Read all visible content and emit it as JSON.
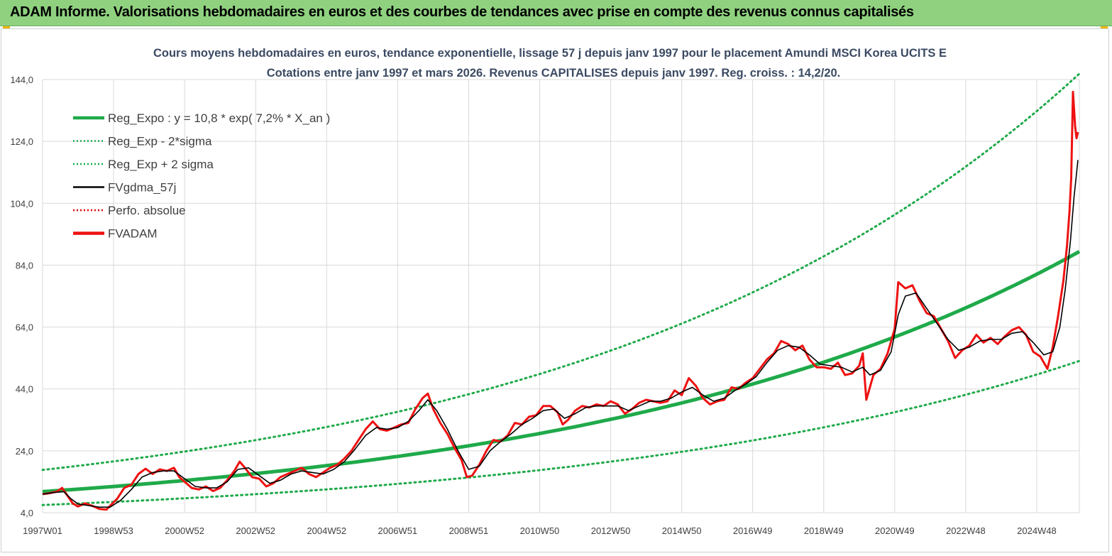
{
  "header": {
    "title": "ADAM Informe. Valorisations hebdomadaires en euros et des courbes de tendances avec prise en compte des revenus connus capitalisés"
  },
  "chart_data": {
    "type": "line",
    "title_line1": "Cours moyens hebdomadaires en euros, tendance exponentielle, lissage 57 j depuis janv 1997  pour le placement Amundi MSCI Korea UCITS E",
    "title_line2": "Cotations entre janv 1997 et mars 2026. Revenus CAPITALISES depuis janv 1997. Reg. croiss. : 14,2/20.",
    "ylim": [
      4.0,
      144.0
    ],
    "xlim": [
      1997.0,
      2026.2
    ],
    "y_ticks": [
      "4,0",
      "24,0",
      "44,0",
      "64,0",
      "84,0",
      "104,0",
      "124,0",
      "144,0"
    ],
    "y_tick_values": [
      4,
      24,
      44,
      64,
      84,
      104,
      124,
      144
    ],
    "x_tick_labels": [
      "1997W01",
      "1998W53",
      "2000W52",
      "2002W52",
      "2004W52",
      "2006W51",
      "2008W51",
      "2010W50",
      "2012W50",
      "2014W50",
      "2016W49",
      "2018W49",
      "2020W49",
      "2022W48",
      "2024W48"
    ],
    "x_tick_values": [
      1997.0,
      1999.0,
      2001.0,
      2003.0,
      2005.0,
      2007.0,
      2009.0,
      2011.0,
      2013.0,
      2015.0,
      2017.0,
      2019.0,
      2021.0,
      2023.0,
      2025.0
    ],
    "legend": [
      {
        "name": "Reg_Expo : y = 10,8 * exp( 7,2% *  X_an )",
        "style": "thick",
        "color": "#1faa4a"
      },
      {
        "name": "Reg_Exp - 2*sigma",
        "style": "dotted",
        "color": "#1faa4a"
      },
      {
        "name": "Reg_Exp + 2 sigma",
        "style": "dotted",
        "color": "#1faa4a"
      },
      {
        "name": "FVgdma_57j",
        "style": "solid",
        "color": "#000000"
      },
      {
        "name": "Perfo. absolue",
        "style": "dotted",
        "color": "#e00000"
      },
      {
        "name": "FVADAM",
        "style": "thick",
        "color": "#ee1111"
      }
    ],
    "regression": {
      "a": 10.8,
      "rate": 0.072,
      "start": 1997.0,
      "lower_factor": 0.6,
      "upper_factor": 1.65
    },
    "series": [
      {
        "name": "FVADAM",
        "color": "#ee1111",
        "points": [
          [
            1997.0,
            10.0
          ],
          [
            1997.2,
            10.3
          ],
          [
            1997.4,
            10.8
          ],
          [
            1997.55,
            12.0
          ],
          [
            1997.7,
            9.5
          ],
          [
            1997.85,
            7.0
          ],
          [
            1998.0,
            6.0
          ],
          [
            1998.2,
            7.0
          ],
          [
            1998.4,
            6.2
          ],
          [
            1998.6,
            5.2
          ],
          [
            1998.8,
            5.0
          ],
          [
            1998.95,
            6.8
          ],
          [
            1999.1,
            8.5
          ],
          [
            1999.3,
            12.0
          ],
          [
            1999.5,
            13.0
          ],
          [
            1999.7,
            16.5
          ],
          [
            1999.9,
            18.2
          ],
          [
            2000.1,
            16.5
          ],
          [
            2000.3,
            18.0
          ],
          [
            2000.5,
            17.5
          ],
          [
            2000.7,
            18.5
          ],
          [
            2000.85,
            15.5
          ],
          [
            2001.0,
            14.0
          ],
          [
            2001.2,
            12.0
          ],
          [
            2001.4,
            11.5
          ],
          [
            2001.6,
            12.5
          ],
          [
            2001.8,
            11.0
          ],
          [
            2002.0,
            12.0
          ],
          [
            2002.2,
            14.5
          ],
          [
            2002.4,
            17.5
          ],
          [
            2002.55,
            20.5
          ],
          [
            2002.7,
            18.5
          ],
          [
            2002.9,
            15.5
          ],
          [
            2003.1,
            15.0
          ],
          [
            2003.3,
            12.5
          ],
          [
            2003.5,
            13.5
          ],
          [
            2003.7,
            15.5
          ],
          [
            2003.9,
            16.5
          ],
          [
            2004.1,
            17.5
          ],
          [
            2004.3,
            18.5
          ],
          [
            2004.5,
            16.5
          ],
          [
            2004.7,
            15.5
          ],
          [
            2004.9,
            17.0
          ],
          [
            2005.1,
            18.5
          ],
          [
            2005.3,
            19.5
          ],
          [
            2005.5,
            21.5
          ],
          [
            2005.7,
            24.0
          ],
          [
            2005.9,
            27.5
          ],
          [
            2006.1,
            31.0
          ],
          [
            2006.3,
            33.5
          ],
          [
            2006.5,
            31.0
          ],
          [
            2006.7,
            30.5
          ],
          [
            2006.9,
            31.5
          ],
          [
            2007.1,
            32.5
          ],
          [
            2007.3,
            33.0
          ],
          [
            2007.5,
            37.5
          ],
          [
            2007.7,
            41.0
          ],
          [
            2007.85,
            42.5
          ],
          [
            2008.0,
            37.5
          ],
          [
            2008.2,
            33.0
          ],
          [
            2008.4,
            29.5
          ],
          [
            2008.6,
            25.0
          ],
          [
            2008.8,
            21.0
          ],
          [
            2008.95,
            15.5
          ],
          [
            2009.1,
            16.0
          ],
          [
            2009.3,
            19.5
          ],
          [
            2009.5,
            24.0
          ],
          [
            2009.7,
            27.5
          ],
          [
            2009.9,
            27.0
          ],
          [
            2010.1,
            29.0
          ],
          [
            2010.3,
            33.0
          ],
          [
            2010.5,
            32.5
          ],
          [
            2010.7,
            35.0
          ],
          [
            2010.9,
            35.5
          ],
          [
            2011.1,
            38.5
          ],
          [
            2011.3,
            38.5
          ],
          [
            2011.5,
            36.5
          ],
          [
            2011.65,
            32.5
          ],
          [
            2011.8,
            34.0
          ],
          [
            2012.0,
            37.0
          ],
          [
            2012.2,
            38.5
          ],
          [
            2012.4,
            38.0
          ],
          [
            2012.6,
            39.0
          ],
          [
            2012.8,
            38.5
          ],
          [
            2013.0,
            40.0
          ],
          [
            2013.2,
            39.0
          ],
          [
            2013.4,
            36.0
          ],
          [
            2013.6,
            37.5
          ],
          [
            2013.8,
            39.5
          ],
          [
            2014.0,
            40.5
          ],
          [
            2014.2,
            40.0
          ],
          [
            2014.4,
            39.5
          ],
          [
            2014.6,
            40.0
          ],
          [
            2014.8,
            43.5
          ],
          [
            2015.0,
            42.0
          ],
          [
            2015.2,
            47.5
          ],
          [
            2015.4,
            45.0
          ],
          [
            2015.6,
            41.0
          ],
          [
            2015.8,
            39.0
          ],
          [
            2016.0,
            40.0
          ],
          [
            2016.2,
            40.5
          ],
          [
            2016.4,
            44.5
          ],
          [
            2016.6,
            44.0
          ],
          [
            2016.8,
            46.0
          ],
          [
            2017.0,
            47.5
          ],
          [
            2017.2,
            50.5
          ],
          [
            2017.4,
            53.5
          ],
          [
            2017.6,
            55.5
          ],
          [
            2017.8,
            59.5
          ],
          [
            2018.0,
            58.5
          ],
          [
            2018.2,
            56.5
          ],
          [
            2018.4,
            58.0
          ],
          [
            2018.6,
            53.5
          ],
          [
            2018.8,
            51.0
          ],
          [
            2019.0,
            51.0
          ],
          [
            2019.2,
            50.5
          ],
          [
            2019.4,
            52.5
          ],
          [
            2019.6,
            48.5
          ],
          [
            2019.8,
            49.0
          ],
          [
            2020.0,
            51.5
          ],
          [
            2020.1,
            55.5
          ],
          [
            2020.2,
            40.5
          ],
          [
            2020.4,
            48.5
          ],
          [
            2020.6,
            50.5
          ],
          [
            2020.8,
            55.5
          ],
          [
            2021.0,
            63.5
          ],
          [
            2021.1,
            78.5
          ],
          [
            2021.3,
            76.5
          ],
          [
            2021.5,
            77.5
          ],
          [
            2021.7,
            72.5
          ],
          [
            2021.9,
            68.5
          ],
          [
            2022.1,
            67.5
          ],
          [
            2022.3,
            63.5
          ],
          [
            2022.5,
            59.5
          ],
          [
            2022.7,
            54.0
          ],
          [
            2022.9,
            56.5
          ],
          [
            2023.1,
            58.0
          ],
          [
            2023.3,
            61.5
          ],
          [
            2023.5,
            59.0
          ],
          [
            2023.7,
            60.5
          ],
          [
            2023.9,
            58.5
          ],
          [
            2024.1,
            61.0
          ],
          [
            2024.3,
            63.0
          ],
          [
            2024.5,
            64.0
          ],
          [
            2024.7,
            61.5
          ],
          [
            2024.9,
            56.0
          ],
          [
            2025.1,
            54.5
          ],
          [
            2025.3,
            50.5
          ],
          [
            2025.45,
            57.5
          ],
          [
            2025.6,
            67.5
          ],
          [
            2025.75,
            79.0
          ],
          [
            2025.85,
            90.0
          ],
          [
            2025.92,
            101.0
          ],
          [
            2025.97,
            112.0
          ],
          [
            2026.02,
            140.0
          ],
          [
            2026.08,
            129.0
          ],
          [
            2026.12,
            125.0
          ],
          [
            2026.16,
            127.0
          ]
        ]
      },
      {
        "name": "FVgdma_57j",
        "color": "#000000",
        "points": [
          [
            1997.0,
            10.0
          ],
          [
            1997.3,
            10.5
          ],
          [
            1997.6,
            10.8
          ],
          [
            1997.8,
            8.5
          ],
          [
            1998.0,
            6.8
          ],
          [
            1998.3,
            6.3
          ],
          [
            1998.6,
            5.8
          ],
          [
            1998.9,
            5.8
          ],
          [
            1999.2,
            8.0
          ],
          [
            1999.5,
            11.5
          ],
          [
            1999.8,
            15.5
          ],
          [
            2000.1,
            17.0
          ],
          [
            2000.4,
            17.5
          ],
          [
            2000.7,
            17.5
          ],
          [
            2001.0,
            15.0
          ],
          [
            2001.3,
            12.5
          ],
          [
            2001.6,
            12.0
          ],
          [
            2001.9,
            12.0
          ],
          [
            2002.2,
            14.0
          ],
          [
            2002.5,
            18.0
          ],
          [
            2002.8,
            18.5
          ],
          [
            2003.1,
            16.0
          ],
          [
            2003.4,
            13.5
          ],
          [
            2003.7,
            14.5
          ],
          [
            2004.0,
            16.5
          ],
          [
            2004.3,
            17.5
          ],
          [
            2004.6,
            17.0
          ],
          [
            2004.9,
            16.5
          ],
          [
            2005.2,
            18.0
          ],
          [
            2005.5,
            20.5
          ],
          [
            2005.8,
            24.5
          ],
          [
            2006.1,
            29.0
          ],
          [
            2006.4,
            31.5
          ],
          [
            2006.7,
            31.0
          ],
          [
            2007.0,
            31.5
          ],
          [
            2007.3,
            33.5
          ],
          [
            2007.6,
            37.0
          ],
          [
            2007.85,
            40.5
          ],
          [
            2008.1,
            37.0
          ],
          [
            2008.4,
            31.0
          ],
          [
            2008.7,
            24.0
          ],
          [
            2009.0,
            18.0
          ],
          [
            2009.3,
            19.0
          ],
          [
            2009.6,
            24.0
          ],
          [
            2009.9,
            27.0
          ],
          [
            2010.2,
            29.5
          ],
          [
            2010.5,
            32.5
          ],
          [
            2010.8,
            34.5
          ],
          [
            2011.1,
            37.0
          ],
          [
            2011.4,
            37.5
          ],
          [
            2011.7,
            34.5
          ],
          [
            2012.0,
            36.0
          ],
          [
            2012.3,
            38.0
          ],
          [
            2012.6,
            38.5
          ],
          [
            2012.9,
            38.5
          ],
          [
            2013.2,
            38.5
          ],
          [
            2013.5,
            37.0
          ],
          [
            2013.8,
            38.5
          ],
          [
            2014.1,
            40.0
          ],
          [
            2014.4,
            40.0
          ],
          [
            2014.7,
            41.0
          ],
          [
            2015.0,
            43.0
          ],
          [
            2015.3,
            44.5
          ],
          [
            2015.6,
            42.0
          ],
          [
            2015.9,
            40.0
          ],
          [
            2016.2,
            41.0
          ],
          [
            2016.5,
            43.5
          ],
          [
            2016.8,
            45.5
          ],
          [
            2017.1,
            48.0
          ],
          [
            2017.4,
            52.5
          ],
          [
            2017.7,
            56.5
          ],
          [
            2018.0,
            58.0
          ],
          [
            2018.3,
            57.5
          ],
          [
            2018.6,
            55.0
          ],
          [
            2018.9,
            52.0
          ],
          [
            2019.2,
            51.5
          ],
          [
            2019.5,
            51.0
          ],
          [
            2019.8,
            49.5
          ],
          [
            2020.1,
            51.0
          ],
          [
            2020.3,
            48.5
          ],
          [
            2020.6,
            50.0
          ],
          [
            2020.9,
            56.0
          ],
          [
            2021.1,
            68.0
          ],
          [
            2021.3,
            74.0
          ],
          [
            2021.6,
            75.0
          ],
          [
            2021.9,
            70.0
          ],
          [
            2022.2,
            65.0
          ],
          [
            2022.5,
            60.0
          ],
          [
            2022.8,
            56.5
          ],
          [
            2023.1,
            57.5
          ],
          [
            2023.4,
            59.5
          ],
          [
            2023.7,
            60.0
          ],
          [
            2024.0,
            60.0
          ],
          [
            2024.3,
            62.0
          ],
          [
            2024.6,
            62.5
          ],
          [
            2024.9,
            59.0
          ],
          [
            2025.2,
            55.0
          ],
          [
            2025.45,
            56.0
          ],
          [
            2025.65,
            64.0
          ],
          [
            2025.8,
            76.0
          ],
          [
            2025.95,
            92.0
          ],
          [
            2026.05,
            106.0
          ],
          [
            2026.16,
            118.0
          ]
        ]
      }
    ]
  }
}
